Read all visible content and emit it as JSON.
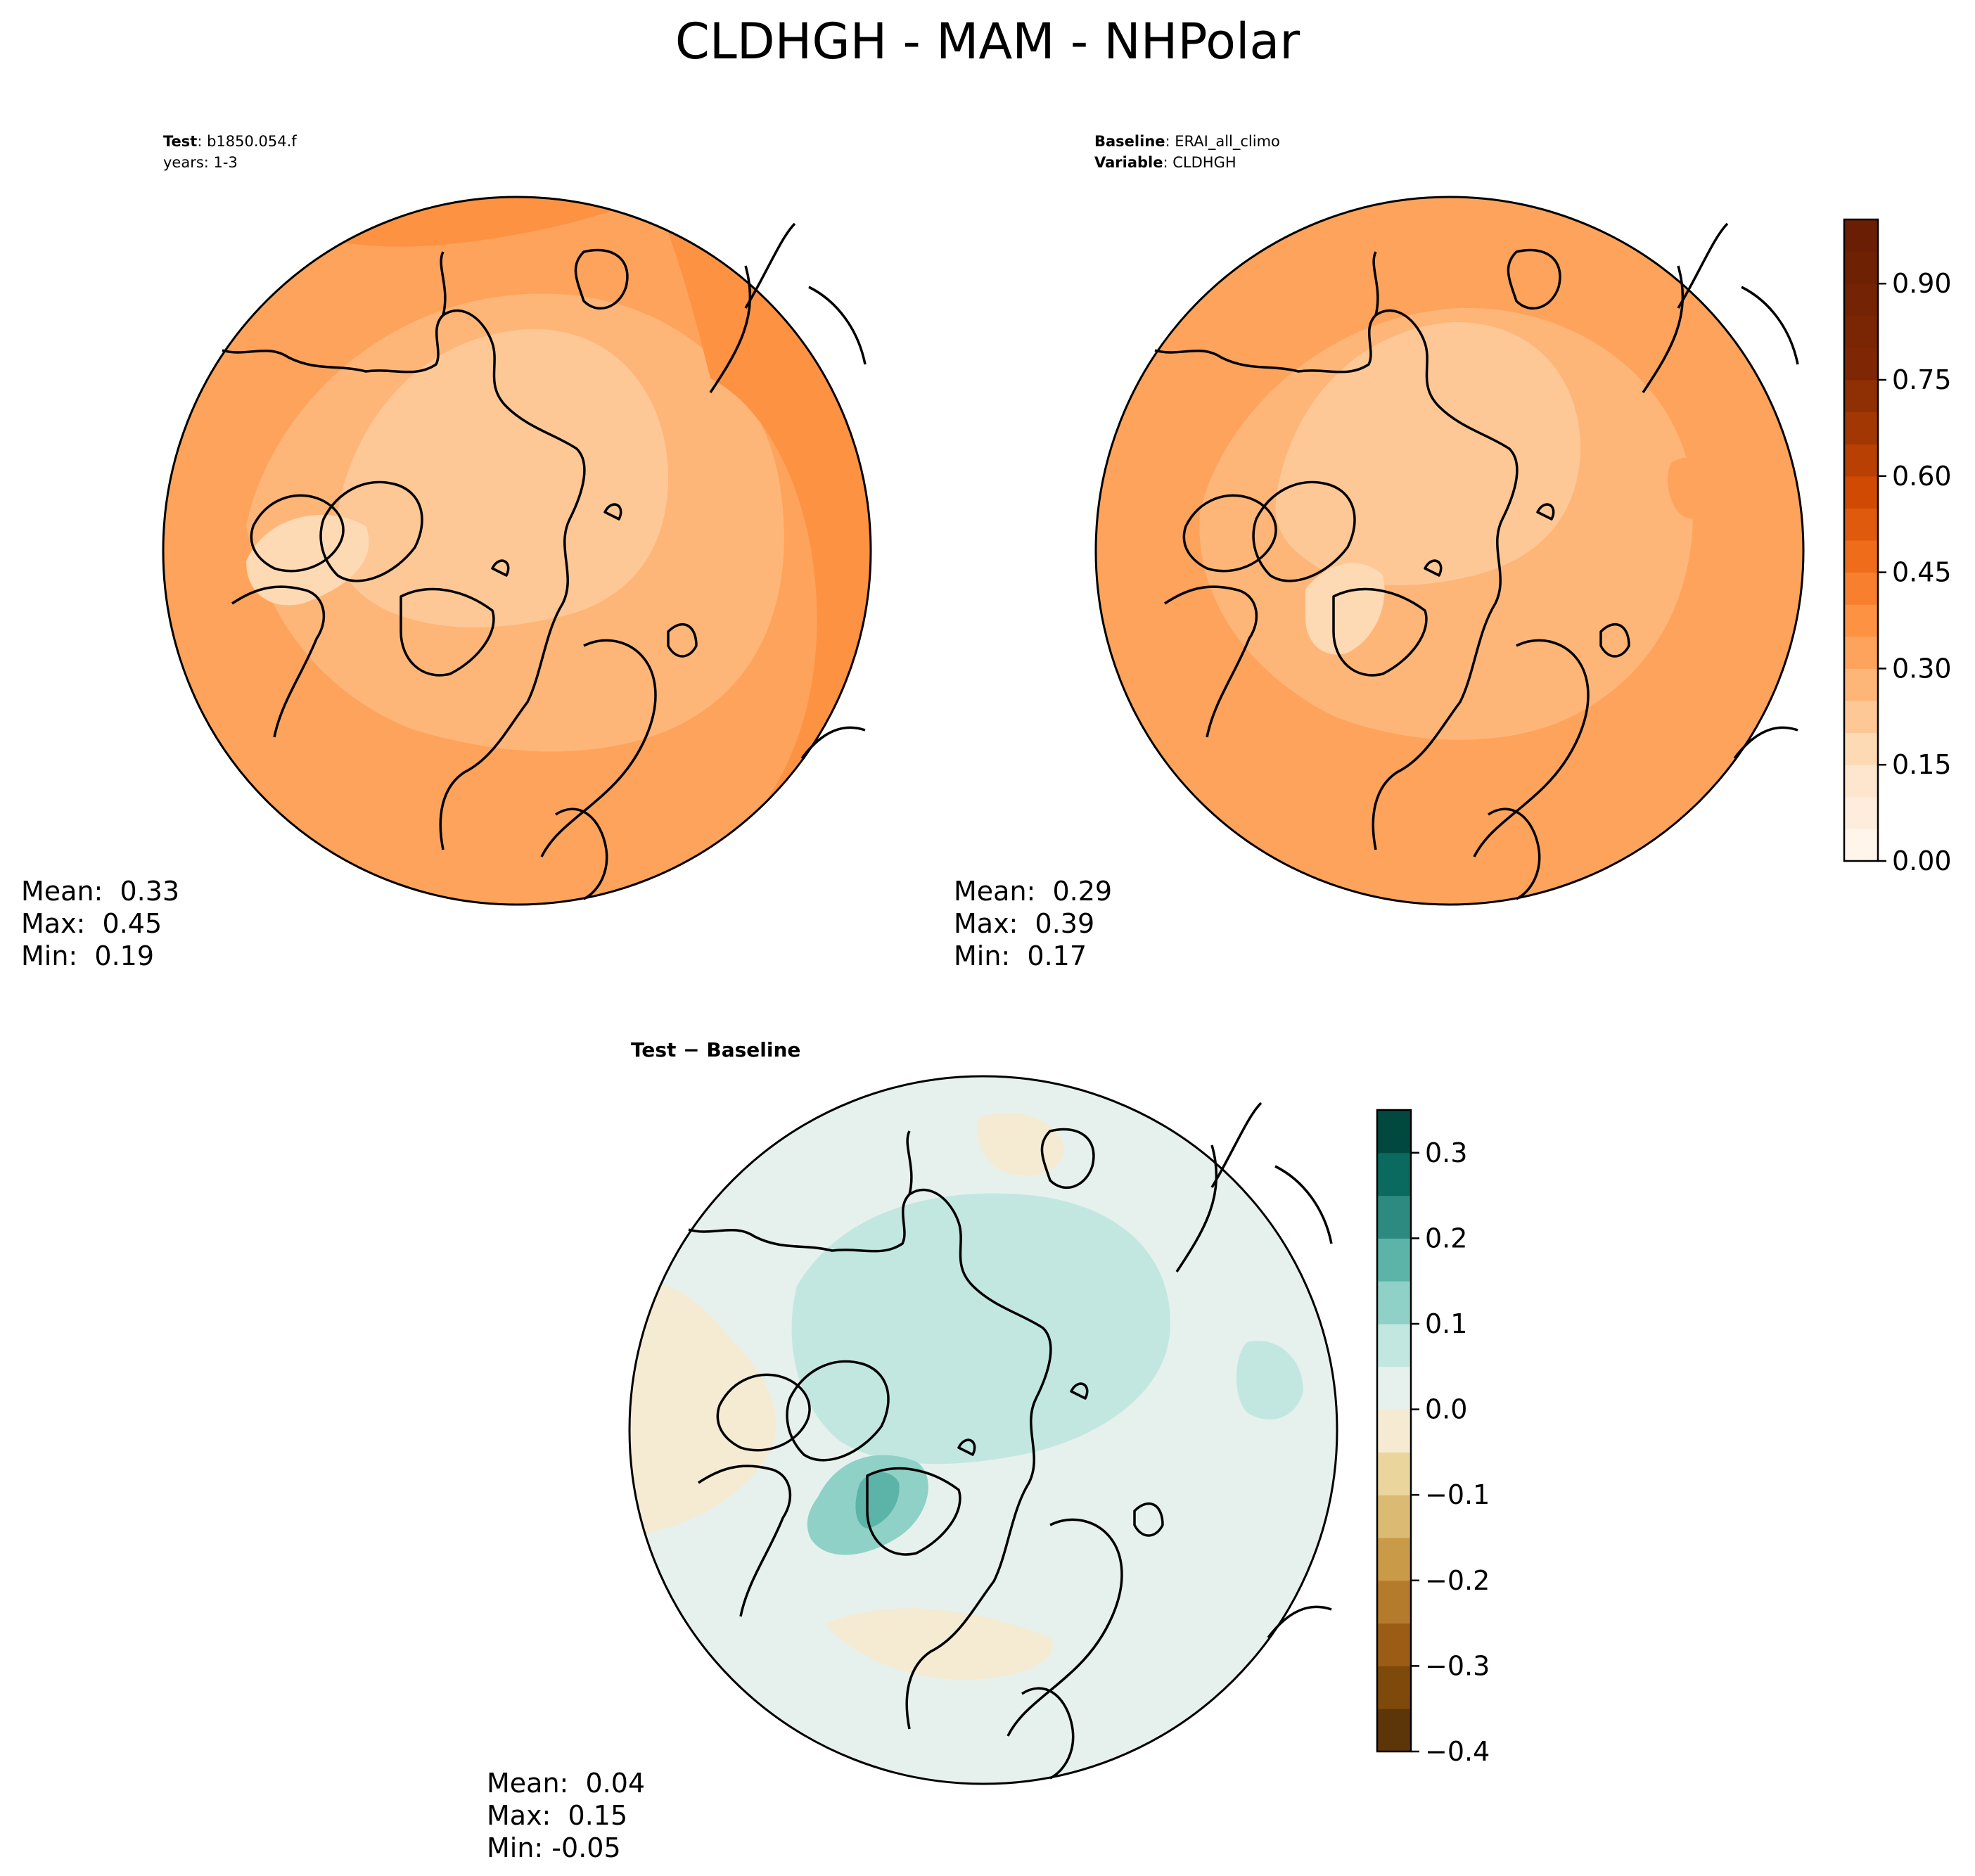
{
  "figure_title": "CLDHGH - MAM - NHPolar",
  "chart_data": [
    {
      "type": "heatmap",
      "panel": "test",
      "meta": [
        {
          "label": "Test",
          "value": "b1850.054.f"
        },
        {
          "label": "",
          "value": "years: 1-3"
        }
      ],
      "stats": {
        "mean": "Mean:  0.33",
        "max": "Max:  0.45",
        "min": "Min:  0.19"
      },
      "projection": "north polar stereographic",
      "field_range": [
        0.19,
        0.45
      ]
    },
    {
      "type": "heatmap",
      "panel": "baseline",
      "meta": [
        {
          "label": "Baseline",
          "value": "ERAI_all_climo"
        },
        {
          "label": "Variable",
          "value": "CLDHGH"
        }
      ],
      "stats": {
        "mean": "Mean:  0.29",
        "max": "Max:  0.39",
        "min": "Min:  0.17"
      },
      "projection": "north polar stereographic",
      "field_range": [
        0.17,
        0.39
      ],
      "colorbar": {
        "cmap": "Oranges",
        "range": [
          0.0,
          1.0
        ],
        "levels": 20,
        "ticks": [
          "0.00",
          "0.15",
          "0.30",
          "0.45",
          "0.60",
          "0.75",
          "0.90"
        ],
        "tick_values": [
          0.0,
          0.15,
          0.3,
          0.45,
          0.6,
          0.75,
          0.9
        ],
        "colors": [
          "#fff5eb",
          "#feeddc",
          "#fee6ce",
          "#fdd9b4",
          "#fdc896",
          "#fdb678",
          "#fda35c",
          "#fd9243",
          "#f77f2d",
          "#ef6c1a",
          "#e05a0e",
          "#d04a04",
          "#b84003",
          "#a33703",
          "#8f3004",
          "#7f2704",
          "#7a2504",
          "#742304",
          "#6f2104",
          "#6a1f04"
        ]
      }
    },
    {
      "type": "heatmap",
      "panel": "difference",
      "meta": [
        {
          "label": "Test − Baseline",
          "value": ""
        }
      ],
      "stats": {
        "mean": "Mean:  0.04",
        "max": "Max:  0.15",
        "min": "Min: -0.05"
      },
      "projection": "north polar stereographic",
      "field_range": [
        -0.05,
        0.15
      ],
      "colorbar": {
        "cmap": "BrBG",
        "range": [
          -0.4,
          0.35
        ],
        "levels": 15,
        "ticks": [
          "−0.4",
          "−0.3",
          "−0.2",
          "−0.1",
          "0.0",
          "0.1",
          "0.2",
          "0.3"
        ],
        "tick_values": [
          -0.4,
          -0.3,
          -0.2,
          -0.1,
          0.0,
          0.1,
          0.2,
          0.3
        ],
        "colors": [
          "#5c3608",
          "#7e4a0c",
          "#9b5d16",
          "#b57b2c",
          "#c99a47",
          "#dbbb73",
          "#ead69c",
          "#f5ebd3",
          "#e6f1ee",
          "#c2e7e1",
          "#8fd1c6",
          "#5cb3a8",
          "#2d8a80",
          "#0b6a5f",
          "#01493f"
        ]
      }
    }
  ]
}
